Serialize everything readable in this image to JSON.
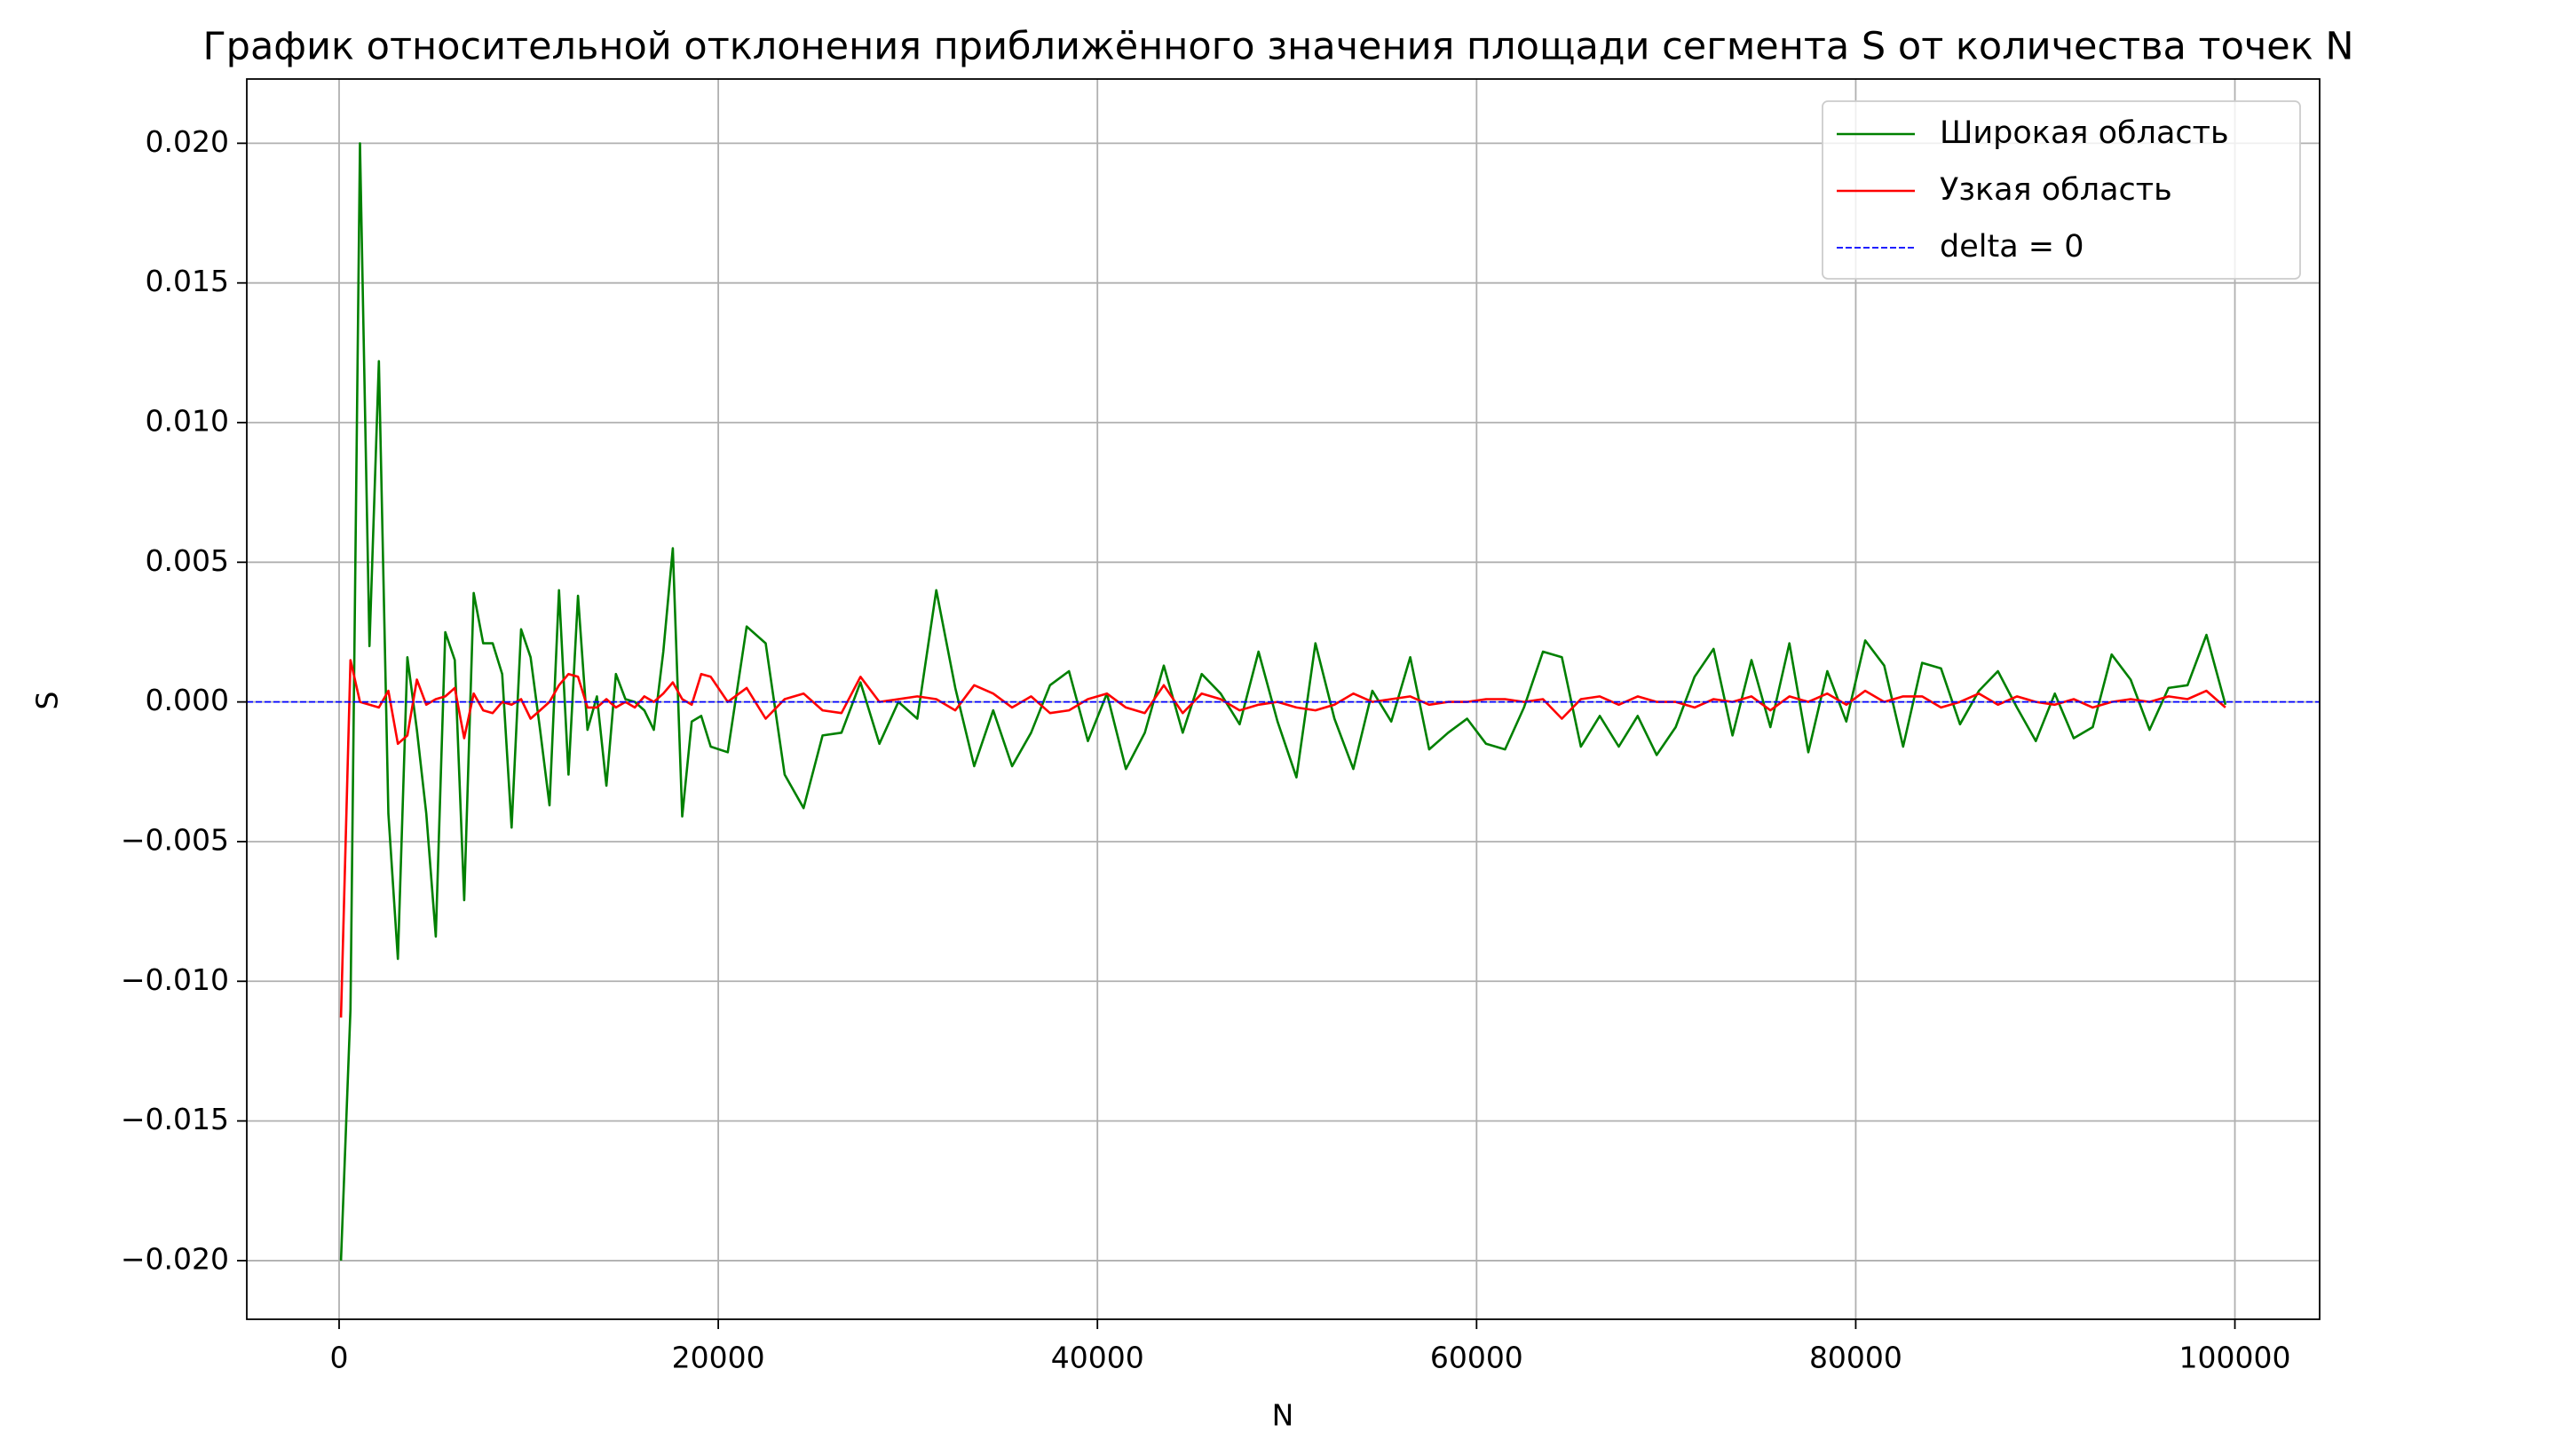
{
  "chart_data": {
    "type": "line",
    "title": "График относительной отклонения приближённого значения площади сегмента S от количества точек N",
    "x_label": "N",
    "y_label": "S",
    "x": [
      100,
      600,
      1100,
      1600,
      2100,
      2600,
      3100,
      3600,
      4100,
      4600,
      5100,
      5600,
      6100,
      6600,
      7100,
      7600,
      8100,
      8600,
      9100,
      9600,
      10100,
      10600,
      11100,
      11600,
      12100,
      12600,
      13100,
      13600,
      14100,
      14600,
      15100,
      15600,
      16100,
      16600,
      17100,
      17600,
      18100,
      18600,
      19100,
      19600,
      20500,
      21500,
      22500,
      23500,
      24500,
      25500,
      26500,
      27500,
      28500,
      29500,
      30500,
      31500,
      32500,
      33500,
      34500,
      35500,
      36500,
      37500,
      38500,
      39500,
      40500,
      41500,
      42500,
      43500,
      44500,
      45500,
      46500,
      47500,
      48500,
      49500,
      50500,
      51500,
      52500,
      53500,
      54500,
      55500,
      56500,
      57500,
      58500,
      59500,
      60500,
      61500,
      62500,
      63500,
      64500,
      65500,
      66500,
      67500,
      68500,
      69500,
      70500,
      71500,
      72500,
      73500,
      74500,
      75500,
      76500,
      77500,
      78500,
      79500,
      80500,
      81500,
      82500,
      83500,
      84500,
      85500,
      86500,
      87500,
      88500,
      89500,
      90500,
      91500,
      92500,
      93500,
      94500,
      95500,
      96500,
      97500,
      98500,
      99500
    ],
    "series": [
      {
        "name": "Широкая область",
        "color": "green",
        "values": [
          -0.02,
          -0.011,
          0.02,
          0.002,
          0.0122,
          -0.004,
          -0.0092,
          0.0016,
          -0.001,
          -0.004,
          -0.0084,
          0.0025,
          0.0015,
          -0.0071,
          0.0039,
          0.0021,
          0.0021,
          0.001,
          -0.0045,
          0.0026,
          0.0016,
          -0.001,
          -0.0037,
          0.004,
          -0.0026,
          0.0038,
          -0.001,
          0.0002,
          -0.003,
          0.001,
          0.0001,
          0.0,
          -0.0003,
          -0.001,
          0.0018,
          0.0055,
          -0.0041,
          -0.0007,
          -0.0005,
          -0.0016,
          -0.0018,
          0.0027,
          0.0021,
          -0.0026,
          -0.0038,
          -0.0012,
          -0.0011,
          0.0007,
          -0.0015,
          0.0,
          -0.0006,
          0.004,
          0.0005,
          -0.0023,
          -0.0003,
          -0.0023,
          -0.0011,
          0.0006,
          0.0011,
          -0.0014,
          0.0003,
          -0.0024,
          -0.0011,
          0.0013,
          -0.0011,
          0.001,
          0.0003,
          -0.0008,
          0.0018,
          -0.0007,
          -0.0027,
          0.0021,
          -0.0006,
          -0.0024,
          0.0004,
          -0.0007,
          0.0016,
          -0.0017,
          -0.0011,
          -0.0006,
          -0.0015,
          -0.0017,
          -0.0002,
          0.0018,
          0.0016,
          -0.0016,
          -0.0005,
          -0.0016,
          -0.0005,
          -0.0019,
          -0.0009,
          0.0009,
          0.0019,
          -0.0012,
          0.0015,
          -0.0009,
          0.0021,
          -0.0018,
          0.0011,
          -0.0007,
          0.0022,
          0.0013,
          -0.0016,
          0.0014,
          0.0012,
          -0.0008,
          0.0004,
          0.0011,
          -0.0002,
          -0.0014,
          0.0003,
          -0.0013,
          -0.0009,
          0.0017,
          0.0008,
          -0.001,
          0.0005,
          0.0006,
          0.0024,
          -0.0001
        ]
      },
      {
        "name": "Узкая область",
        "color": "red",
        "values": [
          -0.0113,
          0.0015,
          0.0,
          -0.0001,
          -0.0002,
          0.0004,
          -0.0015,
          -0.0012,
          0.0008,
          -0.0001,
          0.0001,
          0.0002,
          0.0005,
          -0.0013,
          0.0003,
          -0.0003,
          -0.0004,
          0.0,
          -0.0001,
          0.0001,
          -0.0006,
          -0.0003,
          0.0,
          0.0006,
          0.001,
          0.0009,
          -0.0002,
          -0.0002,
          0.0001,
          -0.0002,
          0.0,
          -0.0002,
          0.0002,
          0.0,
          0.0003,
          0.0007,
          0.0001,
          -0.0001,
          0.001,
          0.0009,
          0.0,
          0.0005,
          -0.0006,
          0.0001,
          0.0003,
          -0.0003,
          -0.0004,
          0.0009,
          0.0,
          0.0001,
          0.0002,
          0.0001,
          -0.0003,
          0.0006,
          0.0003,
          -0.0002,
          0.0002,
          -0.0004,
          -0.0003,
          0.0001,
          0.0003,
          -0.0002,
          -0.0004,
          0.0006,
          -0.0004,
          0.0003,
          0.0001,
          -0.0003,
          -0.0001,
          0.0,
          -0.0002,
          -0.0003,
          -0.0001,
          0.0003,
          0.0,
          0.0001,
          0.0002,
          -0.0001,
          0.0,
          0.0,
          0.0001,
          0.0001,
          0.0,
          0.0001,
          -0.0006,
          0.0001,
          0.0002,
          -0.0001,
          0.0002,
          0.0,
          0.0,
          -0.0002,
          0.0001,
          0.0,
          0.0002,
          -0.0003,
          0.0002,
          0.0,
          0.0003,
          -0.0001,
          0.0004,
          0.0,
          0.0002,
          0.0002,
          -0.0002,
          0.0,
          0.0003,
          -0.0001,
          0.0002,
          0.0,
          -0.0001,
          0.0001,
          -0.0002,
          0.0,
          0.0001,
          0.0,
          0.0002,
          0.0001,
          0.0004,
          -0.0002
        ]
      }
    ],
    "hline": {
      "name": "delta = 0",
      "y": 0,
      "color": "blue",
      "style": "dashed"
    },
    "xlim": [
      -4870,
      104470
    ],
    "ylim": [
      -0.0221,
      0.0223
    ],
    "xticks": [
      0,
      20000,
      40000,
      60000,
      80000,
      100000
    ],
    "yticks": [
      {
        "value": -0.02,
        "label": "−0.020"
      },
      {
        "value": -0.015,
        "label": "−0.015"
      },
      {
        "value": -0.01,
        "label": "−0.010"
      },
      {
        "value": -0.005,
        "label": "−0.005"
      },
      {
        "value": 0,
        "label": "0.000"
      },
      {
        "value": 0.005,
        "label": "0.005"
      },
      {
        "value": 0.01,
        "label": "0.010"
      },
      {
        "value": 0.015,
        "label": "0.015"
      },
      {
        "value": 0.02,
        "label": "0.020"
      }
    ],
    "grid": true,
    "legend": "upper right"
  }
}
